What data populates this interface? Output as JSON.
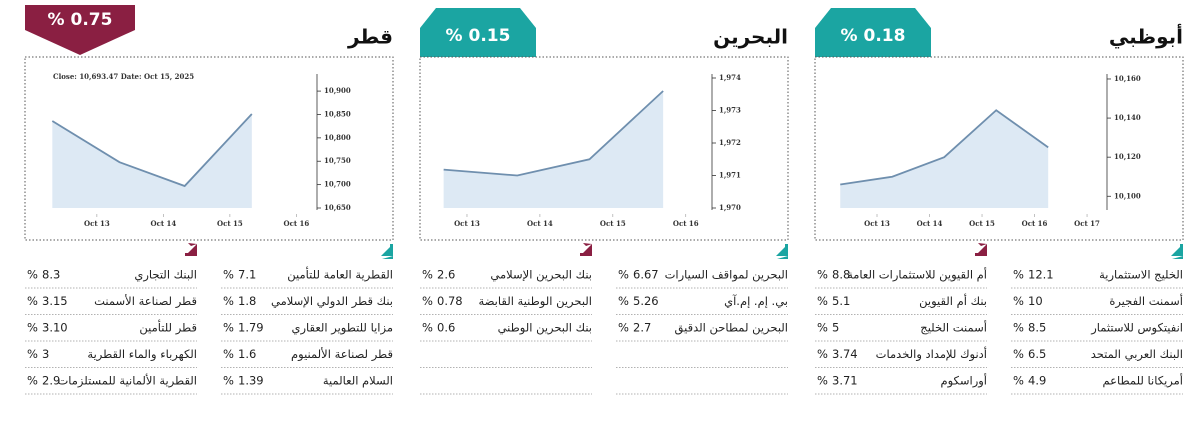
{
  "unit": "%",
  "panels": [
    {
      "title": "قطر",
      "change": "% 0.75",
      "direction": "down",
      "gainers": [
        {
          "name": "القطرية العامة للتأمين",
          "value": "7.1"
        },
        {
          "name": "بنك قطر الدولي الإسلامي",
          "value": "1.8"
        },
        {
          "name": "مزايا للتطوير العقاري",
          "value": "1.79"
        },
        {
          "name": "قطر لصناعة الألمنيوم",
          "value": "1.6"
        },
        {
          "name": "السلام العالمية",
          "value": "1.39"
        }
      ],
      "losers": [
        {
          "name": "البنك التجاري",
          "value": "8.3"
        },
        {
          "name": "قطر لصناعة الأسمنت",
          "value": "3.15"
        },
        {
          "name": "قطر للتأمين",
          "value": "3.10"
        },
        {
          "name": "الكهرباء والماء القطرية",
          "value": "3"
        },
        {
          "name": "القطرية الألمانية للمستلزمات",
          "value": "2.9"
        }
      ]
    },
    {
      "title": "البحرين",
      "change": "% 0.15",
      "direction": "up",
      "gainers": [
        {
          "name": "البحرين لمواقف السيارات",
          "value": "6.67"
        },
        {
          "name": "بي. إم. إم.آي",
          "value": "5.26"
        },
        {
          "name": "البحرين لمطاحن الدقيق",
          "value": "2.7"
        }
      ],
      "losers": [
        {
          "name": "بنك البحرين الإسلامي",
          "value": "2.6"
        },
        {
          "name": "البحرين الوطنية القابضة",
          "value": "0.78"
        },
        {
          "name": "بنك البحرين الوطني",
          "value": "0.6"
        }
      ]
    },
    {
      "title": "أبوظبي",
      "change": "% 0.18",
      "direction": "up",
      "gainers": [
        {
          "name": "الخليج الاستثمارية",
          "value": "12.1"
        },
        {
          "name": "أسمنت الفجيرة",
          "value": "10"
        },
        {
          "name": "انفيتكوس للاستثمار",
          "value": "8.5"
        },
        {
          "name": "البنك العربي المتحد",
          "value": "6.5"
        },
        {
          "name": "أمريكانا للمطاعم",
          "value": "4.9"
        }
      ],
      "losers": [
        {
          "name": "أم القيوين للاستثمارات العامة",
          "value": "8.8"
        },
        {
          "name": "بنك أم القيوين",
          "value": "5.1"
        },
        {
          "name": "أسمنت الخليج",
          "value": "5"
        },
        {
          "name": "أدنوك للإمداد والخدمات",
          "value": "3.74"
        },
        {
          "name": "أوراسكوم",
          "value": "3.71"
        }
      ]
    }
  ],
  "chart_data": [
    {
      "type": "line",
      "annotation": "Close: 10,693.47 Date: Oct 15, 2025",
      "color": "#6f8fae",
      "fill": "#dde9f4",
      "x": [
        12.33,
        13.34,
        14.32,
        15.33
      ],
      "values": [
        10836,
        10748,
        10697,
        10851
      ],
      "xlim": [
        12.22,
        16.31
      ],
      "xticks": [
        {
          "value": 13,
          "label": "Oct 13"
        },
        {
          "value": 14,
          "label": "Oct 14"
        },
        {
          "value": 15,
          "label": "Oct 15"
        },
        {
          "value": 16,
          "label": "Oct 16"
        }
      ],
      "ylim": [
        10650,
        10928
      ],
      "yticks": [
        {
          "value": 10650,
          "label": "10,650"
        },
        {
          "value": 10700,
          "label": "10,700"
        },
        {
          "value": 10750,
          "label": "10,750"
        },
        {
          "value": 10800,
          "label": "10,800"
        },
        {
          "value": 10850,
          "label": "10,850"
        },
        {
          "value": 10900,
          "label": "10,900"
        }
      ]
    },
    {
      "type": "line",
      "color": "#6f8fae",
      "fill": "#dde9f4",
      "x": [
        12.68,
        13.69,
        14.68,
        15.69
      ],
      "values": [
        1971.18,
        1971.0,
        1971.5,
        1973.6
      ],
      "xlim": [
        12.63,
        16.36
      ],
      "xticks": [
        {
          "value": 13,
          "label": "Oct 13"
        },
        {
          "value": 14,
          "label": "Oct 14"
        },
        {
          "value": 15,
          "label": "Oct 15"
        },
        {
          "value": 16,
          "label": "Oct 16"
        }
      ],
      "ylim": [
        1970,
        1974
      ],
      "yticks": [
        {
          "value": 1970,
          "label": "1,970"
        },
        {
          "value": 1971,
          "label": "1,971"
        },
        {
          "value": 1972,
          "label": "1,972"
        },
        {
          "value": 1973,
          "label": "1,973"
        },
        {
          "value": 1974,
          "label": "1,974"
        }
      ]
    },
    {
      "type": "line",
      "color": "#6f8fae",
      "fill": "#dde9f4",
      "x": [
        12.3,
        13.29,
        14.28,
        15.27,
        16.26
      ],
      "values": [
        10106,
        10110,
        10120,
        10144,
        10125
      ],
      "xlim": [
        12.2,
        17.38
      ],
      "xticks": [
        {
          "value": 13,
          "label": "Oct 13"
        },
        {
          "value": 14,
          "label": "Oct 14"
        },
        {
          "value": 15,
          "label": "Oct 15"
        },
        {
          "value": 16,
          "label": "Oct 16"
        },
        {
          "value": 17,
          "label": "Oct 17"
        }
      ],
      "ylim": [
        10094,
        10160.5
      ],
      "yticks": [
        {
          "value": 10100,
          "label": "10,100"
        },
        {
          "value": 10120,
          "label": "10,120"
        },
        {
          "value": 10140,
          "label": "10,140"
        },
        {
          "value": 10160,
          "label": "10,160"
        }
      ]
    }
  ]
}
